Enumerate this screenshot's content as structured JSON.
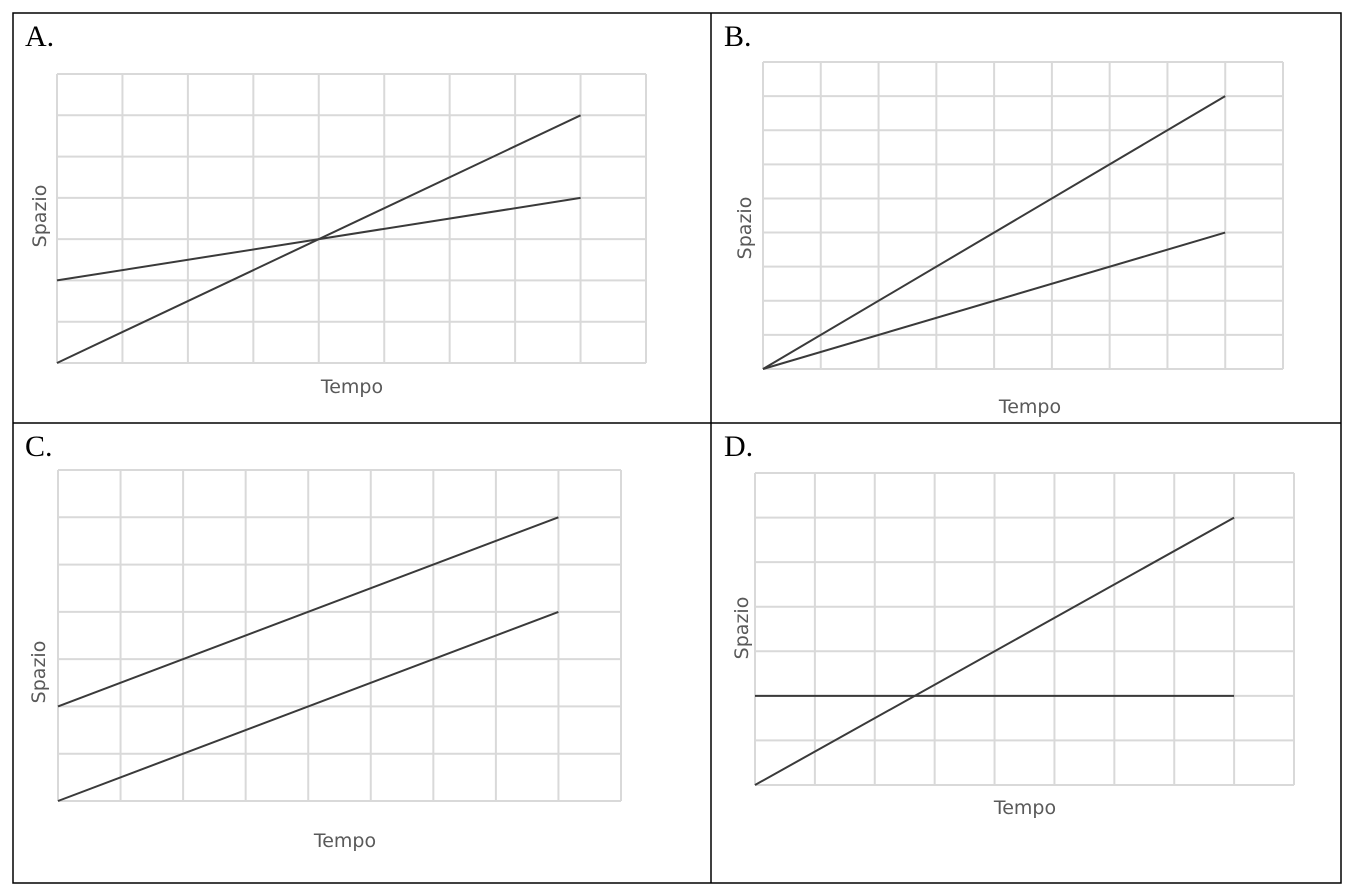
{
  "chart_data": [
    {
      "panel_label": "A.",
      "type": "line",
      "xlabel": "Tempo",
      "ylabel": "Spazio",
      "xlim": [
        0,
        9
      ],
      "ylim": [
        0,
        7
      ],
      "grid": true,
      "series": [
        {
          "points": [
            [
              0,
              0
            ],
            [
              8,
              6
            ]
          ]
        },
        {
          "points": [
            [
              0,
              2
            ],
            [
              8,
              4
            ]
          ]
        }
      ]
    },
    {
      "panel_label": "B.",
      "type": "line",
      "xlabel": "Tempo",
      "ylabel": "Spazio",
      "xlim": [
        0,
        9
      ],
      "ylim": [
        0,
        9
      ],
      "grid": true,
      "series": [
        {
          "points": [
            [
              0,
              0
            ],
            [
              8,
              8
            ]
          ]
        },
        {
          "points": [
            [
              0,
              0
            ],
            [
              8,
              4
            ]
          ]
        }
      ]
    },
    {
      "panel_label": "C.",
      "type": "line",
      "xlabel": "Tempo",
      "ylabel": "Spazio",
      "xlim": [
        0,
        9
      ],
      "ylim": [
        0,
        7
      ],
      "grid": true,
      "series": [
        {
          "points": [
            [
              0,
              2
            ],
            [
              8,
              6
            ]
          ]
        },
        {
          "points": [
            [
              0,
              0
            ],
            [
              8,
              4
            ]
          ]
        }
      ]
    },
    {
      "panel_label": "D.",
      "type": "line",
      "xlabel": "Tempo",
      "ylabel": "Spazio",
      "xlim": [
        0,
        9
      ],
      "ylim": [
        0,
        7
      ],
      "grid": true,
      "series": [
        {
          "points": [
            [
              0,
              0
            ],
            [
              8,
              6
            ]
          ]
        },
        {
          "points": [
            [
              0,
              2
            ],
            [
              8,
              2
            ]
          ]
        }
      ]
    }
  ]
}
